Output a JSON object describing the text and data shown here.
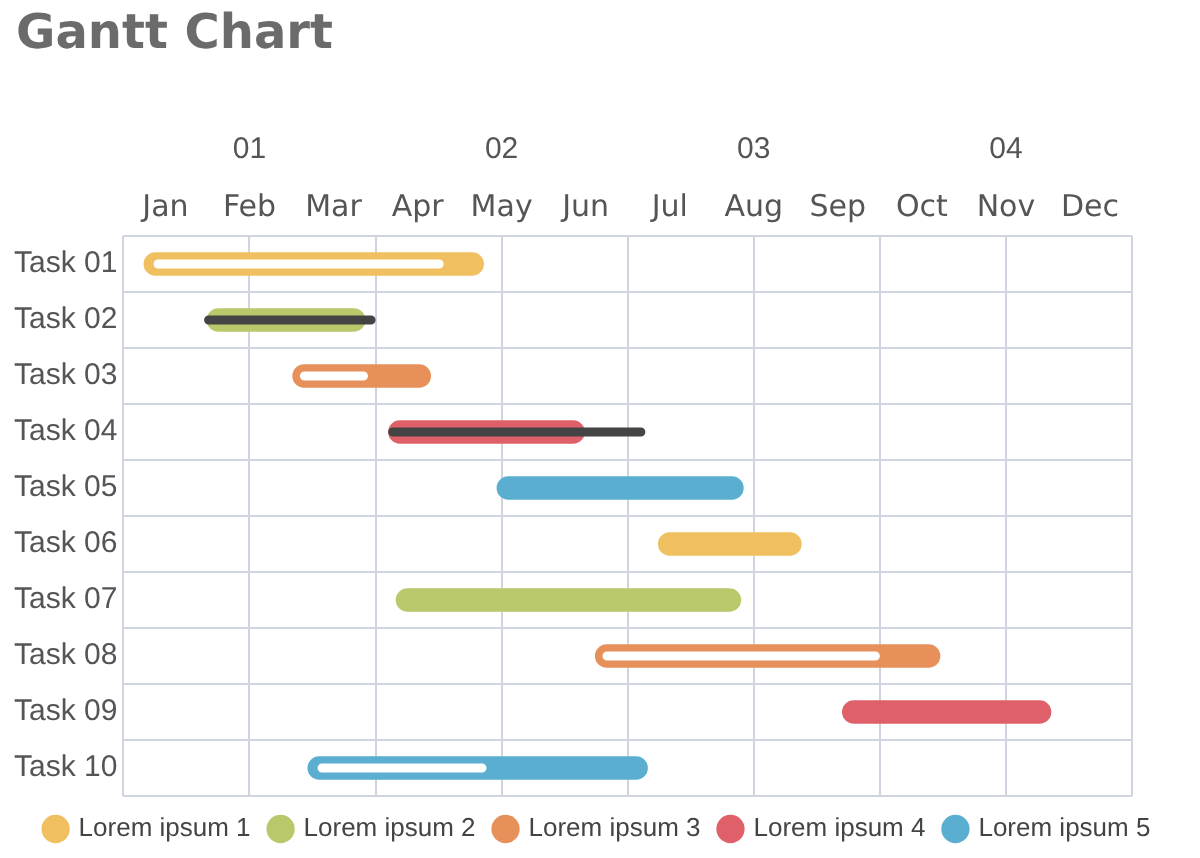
{
  "chart_data": {
    "type": "bar",
    "orientation": "horizontal",
    "title": "Gantt Chart",
    "categories": [
      "Task 01",
      "Task 02",
      "Task 03",
      "Task 04",
      "Task 05",
      "Task 06",
      "Task 07",
      "Task 08",
      "Task 09",
      "Task 10"
    ],
    "xlim": [
      0.5,
      4.5
    ],
    "xticks": [
      {
        "value": 0.5,
        "label": null
      },
      {
        "value": 1,
        "label": "01"
      },
      {
        "value": 1.5,
        "label": null
      },
      {
        "value": 2,
        "label": "02"
      },
      {
        "value": 2.5,
        "label": null
      },
      {
        "value": 3,
        "label": "03"
      },
      {
        "value": 3.5,
        "label": null
      },
      {
        "value": 4,
        "label": "04"
      },
      {
        "value": 4.5,
        "label": null
      }
    ],
    "annotations": [
      "Jan",
      "Feb",
      "Mar",
      "Apr",
      "May",
      "Jun",
      "Jul",
      "Aug",
      "Sep",
      "Oct",
      "Nov",
      "Dec"
    ],
    "grid": true,
    "legend": "bottom",
    "series": [
      {
        "name": "Lorem ipsum 1",
        "color": "#f0c060",
        "base": [
          0.58,
          null,
          null,
          null,
          null,
          2.62,
          null,
          null,
          null,
          null
        ],
        "values": [
          1.35,
          null,
          null,
          null,
          null,
          0.57,
          null,
          null,
          null,
          null
        ]
      },
      {
        "name": "Lorem ipsum 2",
        "color": "#b8c86a",
        "base": [
          null,
          0.83,
          null,
          null,
          null,
          null,
          1.58,
          null,
          null,
          null
        ],
        "values": [
          null,
          0.63,
          null,
          null,
          null,
          null,
          1.37,
          null,
          null,
          null
        ]
      },
      {
        "name": "Lorem ipsum 3",
        "color": "#e8905a",
        "base": [
          null,
          null,
          1.17,
          null,
          null,
          null,
          null,
          2.37,
          null,
          null
        ],
        "values": [
          null,
          null,
          0.55,
          null,
          null,
          null,
          null,
          1.37,
          null,
          null
        ]
      },
      {
        "name": "Lorem ipsum 4",
        "color": "#e0606a",
        "base": [
          null,
          null,
          null,
          1.55,
          null,
          null,
          null,
          null,
          3.35,
          null
        ],
        "values": [
          null,
          null,
          null,
          0.78,
          null,
          null,
          null,
          null,
          0.83,
          null
        ]
      },
      {
        "name": "Lorem ipsum 5",
        "color": "#5aaed0",
        "base": [
          null,
          null,
          null,
          null,
          1.98,
          null,
          null,
          null,
          null,
          1.23
        ],
        "values": [
          null,
          null,
          null,
          null,
          0.98,
          null,
          null,
          null,
          null,
          1.35
        ]
      },
      {
        "color": "#ffffff",
        "base": [
          0.62,
          null,
          1.2,
          null,
          null,
          null,
          null,
          2.4,
          null,
          1.27
        ],
        "values": [
          1.15,
          null,
          0.27,
          null,
          null,
          null,
          null,
          1.1,
          null,
          0.67
        ]
      },
      {
        "color": "#444444",
        "base": [
          null,
          0.82,
          null,
          1.55,
          null,
          null,
          null,
          null,
          null,
          null
        ],
        "values": [
          null,
          0.68,
          null,
          1.02,
          null,
          null,
          null,
          null,
          null,
          null
        ]
      }
    ]
  }
}
